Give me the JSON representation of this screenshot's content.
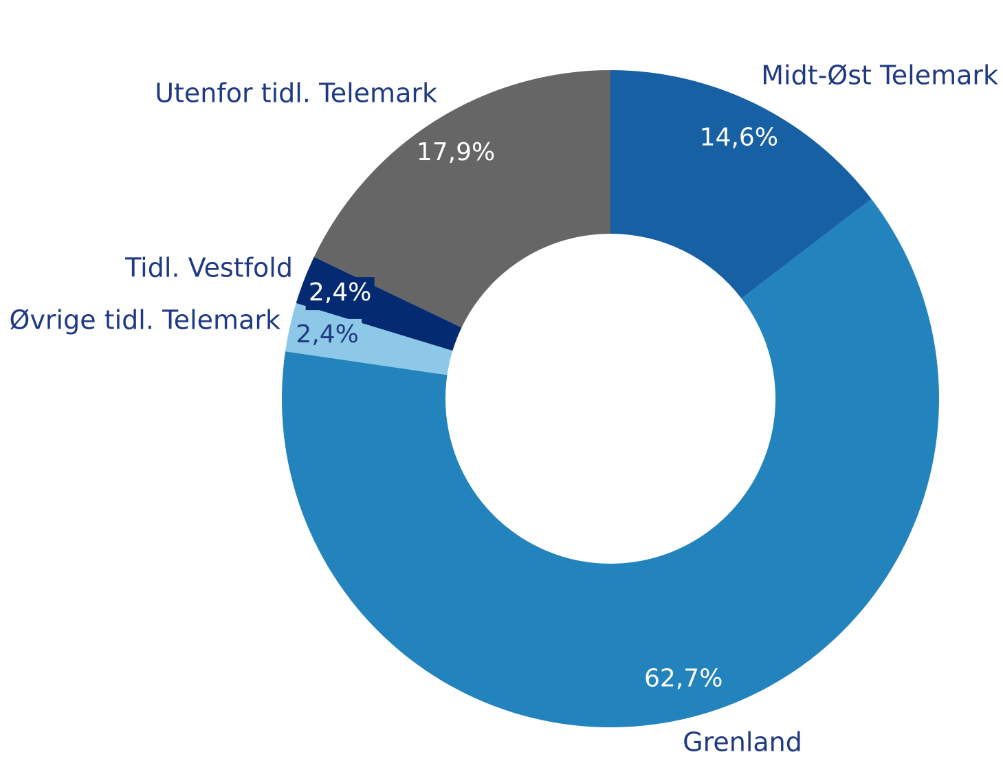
{
  "chart_data": {
    "type": "donut",
    "categories": [
      "Midt-Øst Telemark",
      "Grenland",
      "Øvrige tidl. Telemark",
      "Tidl. Vestfold",
      "Utenfor tidl. Telemark"
    ],
    "values": [
      14.6,
      62.7,
      2.4,
      2.4,
      17.9
    ],
    "value_labels": [
      "14,6%",
      "62,7%",
      "2,4%",
      "2,4%",
      "17,9%"
    ],
    "colors": [
      "#1660a3",
      "#2383bc",
      "#8ec8e8",
      "#042b72",
      "#666666"
    ]
  }
}
